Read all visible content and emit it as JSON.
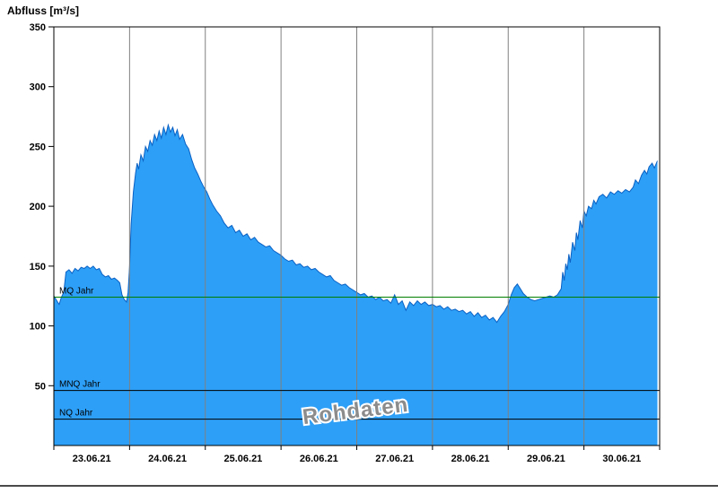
{
  "chart_data": {
    "type": "area",
    "title": "Abfluss [m³/s]",
    "xlabel": "",
    "ylabel": "Abfluss [m³/s]",
    "watermark": "Rohdaten",
    "x_unit": "days since 23.06.21 00:00",
    "x_range_days": [
      0,
      8
    ],
    "x_gridlines_days": [
      1,
      2,
      3,
      4,
      5,
      6,
      7
    ],
    "x_tick_labels": [
      "23.06.21",
      "24.06.21",
      "25.06.21",
      "26.06.21",
      "27.06.21",
      "28.06.21",
      "29.06.21",
      "30.06.21"
    ],
    "ylim": [
      0,
      350
    ],
    "y_ticks": [
      50,
      100,
      150,
      200,
      250,
      300,
      350
    ],
    "grid": "vertical-day-lines-only",
    "legend": "none",
    "reference_lines": [
      {
        "label": "MQ Jahr",
        "value": 124,
        "color": "#007F00"
      },
      {
        "label": "MNQ Jahr",
        "value": 46,
        "color": "#000000"
      },
      {
        "label": "NQ Jahr",
        "value": 22,
        "color": "#000000"
      }
    ],
    "series": [
      {
        "name": "Rohdaten",
        "fill_color": "#2D9FF7",
        "line_color": "#0B61C4",
        "points": [
          [
            0.0,
            125
          ],
          [
            0.04,
            121
          ],
          [
            0.07,
            118
          ],
          [
            0.1,
            124
          ],
          [
            0.13,
            128
          ],
          [
            0.16,
            145
          ],
          [
            0.2,
            147
          ],
          [
            0.24,
            144
          ],
          [
            0.28,
            148
          ],
          [
            0.32,
            146
          ],
          [
            0.36,
            149
          ],
          [
            0.4,
            148
          ],
          [
            0.44,
            150
          ],
          [
            0.48,
            148
          ],
          [
            0.52,
            150
          ],
          [
            0.56,
            147
          ],
          [
            0.6,
            148
          ],
          [
            0.64,
            143
          ],
          [
            0.68,
            141
          ],
          [
            0.72,
            142
          ],
          [
            0.76,
            139
          ],
          [
            0.8,
            140
          ],
          [
            0.84,
            138
          ],
          [
            0.87,
            136
          ],
          [
            0.9,
            126
          ],
          [
            0.93,
            122
          ],
          [
            0.96,
            120
          ],
          [
            0.98,
            128
          ],
          [
            1.0,
            150
          ],
          [
            1.02,
            185
          ],
          [
            1.05,
            212
          ],
          [
            1.08,
            228
          ],
          [
            1.1,
            236
          ],
          [
            1.12,
            231
          ],
          [
            1.15,
            243
          ],
          [
            1.18,
            238
          ],
          [
            1.21,
            250
          ],
          [
            1.24,
            246
          ],
          [
            1.27,
            255
          ],
          [
            1.3,
            251
          ],
          [
            1.33,
            260
          ],
          [
            1.36,
            255
          ],
          [
            1.39,
            263
          ],
          [
            1.42,
            257
          ],
          [
            1.45,
            266
          ],
          [
            1.48,
            260
          ],
          [
            1.51,
            268
          ],
          [
            1.54,
            262
          ],
          [
            1.57,
            266
          ],
          [
            1.6,
            259
          ],
          [
            1.63,
            264
          ],
          [
            1.66,
            256
          ],
          [
            1.7,
            260
          ],
          [
            1.74,
            252
          ],
          [
            1.78,
            248
          ],
          [
            1.82,
            239
          ],
          [
            1.86,
            232
          ],
          [
            1.9,
            227
          ],
          [
            1.94,
            221
          ],
          [
            1.98,
            216
          ],
          [
            2.02,
            212
          ],
          [
            2.06,
            206
          ],
          [
            2.1,
            201
          ],
          [
            2.15,
            196
          ],
          [
            2.2,
            192
          ],
          [
            2.25,
            186
          ],
          [
            2.3,
            182
          ],
          [
            2.35,
            184
          ],
          [
            2.4,
            178
          ],
          [
            2.45,
            180
          ],
          [
            2.5,
            175
          ],
          [
            2.55,
            177
          ],
          [
            2.6,
            172
          ],
          [
            2.65,
            174
          ],
          [
            2.7,
            170
          ],
          [
            2.75,
            168
          ],
          [
            2.8,
            166
          ],
          [
            2.85,
            167
          ],
          [
            2.9,
            163
          ],
          [
            2.95,
            161
          ],
          [
            3.0,
            159
          ],
          [
            3.05,
            156
          ],
          [
            3.1,
            154
          ],
          [
            3.15,
            155
          ],
          [
            3.2,
            151
          ],
          [
            3.25,
            152
          ],
          [
            3.3,
            149
          ],
          [
            3.35,
            150
          ],
          [
            3.4,
            147
          ],
          [
            3.45,
            148
          ],
          [
            3.5,
            145
          ],
          [
            3.55,
            143
          ],
          [
            3.6,
            141
          ],
          [
            3.65,
            142
          ],
          [
            3.7,
            138
          ],
          [
            3.75,
            136
          ],
          [
            3.8,
            134
          ],
          [
            3.85,
            135
          ],
          [
            3.9,
            132
          ],
          [
            3.95,
            130
          ],
          [
            4.0,
            128
          ],
          [
            4.05,
            126
          ],
          [
            4.1,
            127
          ],
          [
            4.15,
            124
          ],
          [
            4.2,
            125
          ],
          [
            4.25,
            122
          ],
          [
            4.3,
            124
          ],
          [
            4.35,
            121
          ],
          [
            4.4,
            122
          ],
          [
            4.45,
            119
          ],
          [
            4.5,
            126
          ],
          [
            4.55,
            118
          ],
          [
            4.6,
            121
          ],
          [
            4.65,
            113
          ],
          [
            4.7,
            120
          ],
          [
            4.75,
            117
          ],
          [
            4.8,
            121
          ],
          [
            4.85,
            118
          ],
          [
            4.9,
            120
          ],
          [
            4.95,
            117
          ],
          [
            5.0,
            118
          ],
          [
            5.05,
            116
          ],
          [
            5.1,
            117
          ],
          [
            5.15,
            114
          ],
          [
            5.2,
            116
          ],
          [
            5.25,
            113
          ],
          [
            5.3,
            114
          ],
          [
            5.35,
            112
          ],
          [
            5.4,
            113
          ],
          [
            5.45,
            110
          ],
          [
            5.5,
            112
          ],
          [
            5.55,
            108
          ],
          [
            5.6,
            111
          ],
          [
            5.65,
            107
          ],
          [
            5.7,
            109
          ],
          [
            5.75,
            105
          ],
          [
            5.8,
            107
          ],
          [
            5.85,
            103
          ],
          [
            5.9,
            108
          ],
          [
            5.95,
            112
          ],
          [
            6.0,
            118
          ],
          [
            6.04,
            126
          ],
          [
            6.08,
            132
          ],
          [
            6.12,
            135
          ],
          [
            6.16,
            131
          ],
          [
            6.2,
            127
          ],
          [
            6.25,
            124
          ],
          [
            6.3,
            122
          ],
          [
            6.35,
            121
          ],
          [
            6.4,
            122
          ],
          [
            6.45,
            123
          ],
          [
            6.5,
            124
          ],
          [
            6.55,
            125
          ],
          [
            6.6,
            124
          ],
          [
            6.65,
            126
          ],
          [
            6.7,
            131
          ],
          [
            6.72,
            145
          ],
          [
            6.74,
            138
          ],
          [
            6.76,
            152
          ],
          [
            6.78,
            147
          ],
          [
            6.8,
            160
          ],
          [
            6.82,
            153
          ],
          [
            6.85,
            170
          ],
          [
            6.88,
            163
          ],
          [
            6.9,
            178
          ],
          [
            6.92,
            172
          ],
          [
            6.95,
            188
          ],
          [
            6.98,
            182
          ],
          [
            7.0,
            196
          ],
          [
            7.03,
            192
          ],
          [
            7.06,
            200
          ],
          [
            7.1,
            198
          ],
          [
            7.13,
            205
          ],
          [
            7.16,
            202
          ],
          [
            7.2,
            208
          ],
          [
            7.25,
            210
          ],
          [
            7.3,
            207
          ],
          [
            7.35,
            212
          ],
          [
            7.4,
            210
          ],
          [
            7.45,
            213
          ],
          [
            7.5,
            211
          ],
          [
            7.55,
            214
          ],
          [
            7.6,
            212
          ],
          [
            7.65,
            216
          ],
          [
            7.68,
            222
          ],
          [
            7.72,
            219
          ],
          [
            7.76,
            226
          ],
          [
            7.8,
            230
          ],
          [
            7.83,
            227
          ],
          [
            7.86,
            233
          ],
          [
            7.9,
            236
          ],
          [
            7.93,
            232
          ],
          [
            7.97,
            238
          ]
        ]
      }
    ],
    "colors": {
      "plot_background": "#FFFFFF",
      "gridline": "#808080",
      "axis": "#000000",
      "watermark_fill": "#8C8C8C",
      "watermark_outline": "#FFFFFF"
    }
  }
}
